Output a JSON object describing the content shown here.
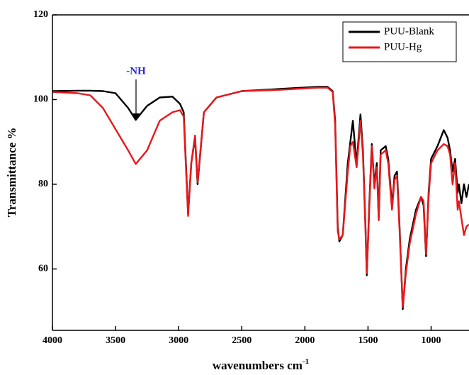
{
  "chart_data": {
    "type": "line",
    "xlabel": "wavenumbers cm",
    "xlabel_superscript": "-1",
    "ylabel": "Transmittance %",
    "annotation": "-NH",
    "x": [
      4000,
      3800,
      3700,
      3600,
      3500,
      3400,
      3340,
      3250,
      3150,
      3050,
      2990,
      2960,
      2925,
      2900,
      2870,
      2850,
      2800,
      2700,
      2500,
      2200,
      1900,
      1820,
      1780,
      1760,
      1740,
      1727,
      1700,
      1660,
      1640,
      1620,
      1600,
      1590,
      1560,
      1540,
      1520,
      1510,
      1490,
      1470,
      1450,
      1430,
      1415,
      1400,
      1380,
      1360,
      1340,
      1310,
      1290,
      1270,
      1250,
      1225,
      1200,
      1170,
      1120,
      1080,
      1060,
      1040,
      1020,
      1000,
      950,
      900,
      870,
      850,
      830,
      810,
      790,
      780,
      760,
      740,
      720,
      700
    ],
    "series": [
      {
        "name": "PUU-Blank",
        "color": "#000000",
        "values": [
          102,
          102.1,
          102.1,
          102,
          101.5,
          98,
          95.2,
          98.5,
          100.5,
          100.7,
          99,
          97,
          73,
          85,
          91,
          80,
          97,
          100.5,
          102,
          102.5,
          103,
          103,
          102,
          95,
          70,
          66.5,
          68,
          85,
          90,
          95,
          88,
          85,
          96.5,
          88,
          70,
          58.5,
          75,
          89.5,
          80,
          85,
          72,
          88,
          88.5,
          89,
          86,
          75,
          82,
          83,
          70,
          50.5,
          60,
          67,
          74,
          77,
          75,
          63,
          78,
          86,
          89,
          92.8,
          91,
          88,
          83,
          86,
          78,
          80,
          75.5,
          80,
          77,
          80
        ]
      },
      {
        "name": "PUU-Hg",
        "color": "#e8181b",
        "values": [
          101.8,
          101.5,
          101,
          98,
          93,
          88,
          84.8,
          88,
          95,
          97,
          97.5,
          96,
          72.5,
          85,
          91.5,
          80.5,
          97,
          100.5,
          102,
          102.3,
          102.8,
          102.8,
          101.8,
          94,
          69,
          67,
          68,
          83,
          89,
          90,
          86,
          84,
          95,
          87,
          69,
          59,
          74,
          89,
          79,
          84,
          71.5,
          87,
          87.5,
          88,
          85,
          74,
          81,
          82,
          69,
          51,
          59,
          66,
          73,
          77,
          76,
          63.5,
          77,
          85,
          88,
          89.5,
          89,
          87,
          80,
          85,
          74,
          76,
          72,
          68,
          70,
          70.5
        ]
      }
    ],
    "xlim": [
      4000,
      700
    ],
    "ylim": [
      45.5,
      120
    ],
    "xticks": [
      4000,
      3500,
      3000,
      2500,
      2000,
      1500,
      1000
    ],
    "yticks": [
      60,
      80,
      100,
      120
    ],
    "legend": "upper right"
  }
}
